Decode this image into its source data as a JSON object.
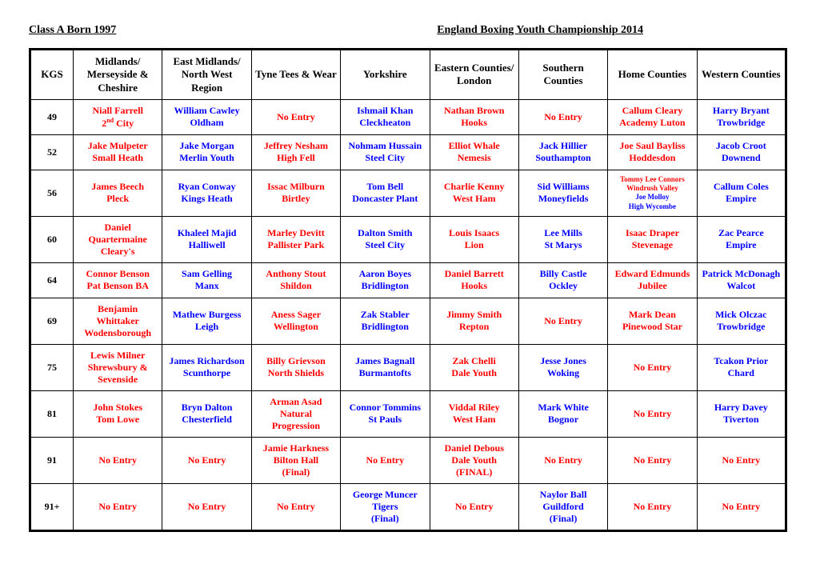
{
  "header": {
    "left": "Class A   Born 1997",
    "right": "England Boxing Youth Championship 2014"
  },
  "columns": [
    "KGS",
    "Midlands/ Merseyside & Cheshire",
    "East Midlands/ North West Region",
    "Tyne Tees & Wear",
    "Yorkshire",
    "Eastern Counties/ London",
    "Southern Counties",
    "Home Counties",
    "Western Counties"
  ],
  "rows": [
    {
      "kgs": "49",
      "cells": [
        {
          "type": "boxer",
          "color": "red",
          "l1": "Niall Farrell",
          "l2": "2",
          "sup": "nd",
          "l2b": " City"
        },
        {
          "type": "boxer",
          "color": "blue",
          "l1": "William Cawley",
          "l2": "Oldham"
        },
        {
          "type": "noentry"
        },
        {
          "type": "boxer",
          "color": "blue",
          "l1": "Ishmail Khan",
          "l2": "Cleckheaton"
        },
        {
          "type": "boxer",
          "color": "red",
          "l1": "Nathan Brown",
          "l2": "Hooks"
        },
        {
          "type": "noentry"
        },
        {
          "type": "boxer",
          "color": "red",
          "l1": "Callum Cleary",
          "l2": "Academy Luton"
        },
        {
          "type": "boxer",
          "color": "blue",
          "l1": "Harry Bryant",
          "l2": "Trowbridge"
        }
      ]
    },
    {
      "kgs": "52",
      "cells": [
        {
          "type": "boxer",
          "color": "red",
          "l1": "Jake Mulpeter",
          "l2": "Small Heath"
        },
        {
          "type": "boxer",
          "color": "blue",
          "l1": "Jake Morgan",
          "l2": "Merlin Youth"
        },
        {
          "type": "boxer",
          "color": "red",
          "l1": "Jeffrey Nesham",
          "l2": "High Fell"
        },
        {
          "type": "boxer",
          "color": "blue",
          "l1": "Nohmam Hussain",
          "l2": "Steel City"
        },
        {
          "type": "boxer",
          "color": "red",
          "l1": "Elliot Whale",
          "l2": "Nemesis"
        },
        {
          "type": "boxer",
          "color": "blue",
          "l1": "Jack Hillier",
          "l2": "Southampton"
        },
        {
          "type": "boxer",
          "color": "red",
          "l1": "Joe Saul Bayliss",
          "l2": "Hoddesdon"
        },
        {
          "type": "boxer",
          "color": "blue",
          "l1": "Jacob Croot",
          "l2": "Downend"
        }
      ]
    },
    {
      "kgs": "56",
      "cells": [
        {
          "type": "boxer",
          "color": "red",
          "l1": "James Beech",
          "l2": "Pleck"
        },
        {
          "type": "boxer",
          "color": "blue",
          "l1": "Ryan Conway",
          "l2": "Kings Heath"
        },
        {
          "type": "boxer",
          "color": "red",
          "l1": "Issac Milburn",
          "l2": "Birtley"
        },
        {
          "type": "boxer",
          "color": "blue",
          "l1": "Tom Bell",
          "l2": "Doncaster Plant"
        },
        {
          "type": "boxer",
          "color": "red",
          "l1": "Charlie Kenny",
          "l2": "West Ham"
        },
        {
          "type": "boxer",
          "color": "blue",
          "l1": "Sid Williams",
          "l2": "Moneyfields"
        },
        {
          "type": "pair",
          "a": {
            "color": "red",
            "l1": "Tommy Lee Connors",
            "l2": "Windrush Valley"
          },
          "b": {
            "color": "blue",
            "l1": "Joe Molloy",
            "l2": "High Wycombe"
          }
        },
        {
          "type": "boxer",
          "color": "blue",
          "l1": "Callum Coles",
          "l2": "Empire"
        }
      ]
    },
    {
      "kgs": "60",
      "cells": [
        {
          "type": "boxer",
          "color": "red",
          "l1": "Daniel Quartermaine",
          "l2": "Cleary's"
        },
        {
          "type": "boxer",
          "color": "blue",
          "l1": "Khaleel Majid",
          "l2": "Halliwell"
        },
        {
          "type": "boxer",
          "color": "red",
          "l1": "Marley Devitt",
          "l2": "Pallister Park"
        },
        {
          "type": "boxer",
          "color": "blue",
          "l1": "Dalton Smith",
          "l2": "Steel City"
        },
        {
          "type": "boxer",
          "color": "red",
          "l1": "Louis Isaacs",
          "l2": "Lion"
        },
        {
          "type": "boxer",
          "color": "blue",
          "l1": "Lee Mills",
          "l2": "St Marys"
        },
        {
          "type": "boxer",
          "color": "red",
          "l1": "Isaac Draper",
          "l2": "Stevenage"
        },
        {
          "type": "boxer",
          "color": "blue",
          "l1": "Zac Pearce",
          "l2": "Empire"
        }
      ]
    },
    {
      "kgs": "64",
      "cells": [
        {
          "type": "boxer",
          "color": "red",
          "l1": "Connor Benson",
          "l2": "Pat Benson BA"
        },
        {
          "type": "boxer",
          "color": "blue",
          "l1": "Sam Gelling",
          "l2": "Manx"
        },
        {
          "type": "boxer",
          "color": "red",
          "l1": "Anthony Stout",
          "l2": "Shildon"
        },
        {
          "type": "boxer",
          "color": "blue",
          "l1": "Aaron Boyes",
          "l2": "Bridlington"
        },
        {
          "type": "boxer",
          "color": "red",
          "l1": "Daniel Barrett",
          "l2": "Hooks"
        },
        {
          "type": "boxer",
          "color": "blue",
          "l1": "Billy Castle",
          "l2": "Ockley"
        },
        {
          "type": "boxer",
          "color": "red",
          "l1": "Edward Edmunds",
          "l2": "Jubilee"
        },
        {
          "type": "boxer",
          "color": "blue",
          "l1": "Patrick McDonagh",
          "l2": "Walcot"
        }
      ]
    },
    {
      "kgs": "69",
      "cells": [
        {
          "type": "boxer",
          "color": "red",
          "l1": "Benjamin Whittaker",
          "l2": "Wodensborough"
        },
        {
          "type": "boxer",
          "color": "blue",
          "l1": "Mathew Burgess",
          "l2": "Leigh"
        },
        {
          "type": "boxer",
          "color": "red",
          "l1": "Aness Sager",
          "l2": "Wellington"
        },
        {
          "type": "boxer",
          "color": "blue",
          "l1": "Zak Stabler",
          "l2": "Bridlington"
        },
        {
          "type": "boxer",
          "color": "red",
          "l1": "Jimmy Smith",
          "l2": "Repton"
        },
        {
          "type": "noentry"
        },
        {
          "type": "boxer",
          "color": "red",
          "l1": "Mark Dean",
          "l2": "Pinewood Star"
        },
        {
          "type": "boxer",
          "color": "blue",
          "l1": "Mick Olczac",
          "l2": "Trowbridge"
        }
      ]
    },
    {
      "kgs": "75",
      "cells": [
        {
          "type": "boxer",
          "color": "red",
          "l1": "Lewis Milner",
          "l2": "Shrewsbury & Sevenside"
        },
        {
          "type": "boxer",
          "color": "blue",
          "l1": "James Richardson",
          "l2": "Scunthorpe"
        },
        {
          "type": "boxer",
          "color": "red",
          "l1": "Billy Grievson",
          "l2": "North Shields"
        },
        {
          "type": "boxer",
          "color": "blue",
          "l1": "James Bagnall",
          "l2": "Burmantofts"
        },
        {
          "type": "boxer",
          "color": "red",
          "l1": "Zak Chelli",
          "l2": "Dale Youth"
        },
        {
          "type": "boxer",
          "color": "blue",
          "l1": "Jesse Jones",
          "l2": "Woking"
        },
        {
          "type": "noentry"
        },
        {
          "type": "boxer",
          "color": "blue",
          "l1": "Tcakon Prior",
          "l2": "Chard"
        }
      ]
    },
    {
      "kgs": "81",
      "cells": [
        {
          "type": "boxer",
          "color": "red",
          "l1": "John Stokes",
          "l2": "Tom Lowe"
        },
        {
          "type": "boxer",
          "color": "blue",
          "l1": "Bryn Dalton",
          "l2": "Chesterfield"
        },
        {
          "type": "boxer",
          "color": "red",
          "l1": "Arman Asad",
          "l2": "Natural Progression"
        },
        {
          "type": "boxer",
          "color": "blue",
          "l1": "Connor Tommins",
          "l2": "St Pauls"
        },
        {
          "type": "boxer",
          "color": "red",
          "l1": "Viddal Riley",
          "l2": "West Ham"
        },
        {
          "type": "boxer",
          "color": "blue",
          "l1": "Mark White",
          "l2": "Bognor"
        },
        {
          "type": "noentry"
        },
        {
          "type": "boxer",
          "color": "blue",
          "l1": "Harry Davey",
          "l2": "Tiverton"
        }
      ]
    },
    {
      "kgs": "91",
      "cells": [
        {
          "type": "noentry"
        },
        {
          "type": "noentry"
        },
        {
          "type": "boxer",
          "color": "red",
          "l1": "Jamie Harkness",
          "l2": "Bilton Hall",
          "l3": "(Final)"
        },
        {
          "type": "noentry"
        },
        {
          "type": "boxer",
          "color": "red",
          "l1": "Daniel Debous",
          "l2": "Dale Youth",
          "l3": "(FINAL)"
        },
        {
          "type": "noentry"
        },
        {
          "type": "noentry"
        },
        {
          "type": "noentry"
        }
      ]
    },
    {
      "kgs": "91+",
      "cells": [
        {
          "type": "noentry"
        },
        {
          "type": "noentry"
        },
        {
          "type": "noentry"
        },
        {
          "type": "boxer",
          "color": "blue",
          "l1": "George Muncer",
          "l2": "Tigers",
          "l3": "(Final)"
        },
        {
          "type": "noentry"
        },
        {
          "type": "boxer",
          "color": "blue",
          "l1": "Naylor Ball",
          "l2": "Guildford",
          "l3": "(Final)"
        },
        {
          "type": "noentry"
        },
        {
          "type": "noentry"
        }
      ]
    }
  ],
  "strings": {
    "noentry": "No Entry"
  },
  "style": {
    "red": "#ff0000",
    "blue": "#0000ff",
    "border": "#000000",
    "bg": "#ffffff"
  }
}
